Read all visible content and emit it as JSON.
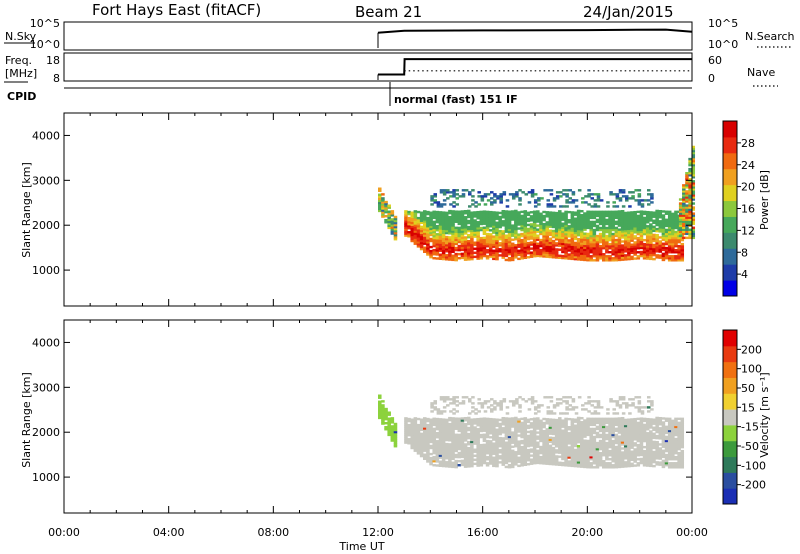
{
  "header": {
    "station": "Fort Hays East (fitACF)",
    "beam": "Beam 21",
    "date": "24/Jan/2015"
  },
  "top_panels": {
    "nsky": {
      "left_label": "N.Sky",
      "ticks_left": [
        "10^5",
        "10^0"
      ],
      "right_label": "N.Search",
      "ticks_right": [
        "10^5",
        "10^0"
      ]
    },
    "freq": {
      "left_label_1": "Freq.",
      "left_label_2": "[MHz]",
      "ticks_left": [
        "18",
        "8"
      ],
      "right_label": "Nave",
      "ticks_right": [
        "60",
        "0"
      ]
    },
    "cpid": {
      "label": "CPID",
      "text": "normal (fast) 151 IF"
    }
  },
  "axis": {
    "xlabel": "Time UT",
    "x_ticks": [
      "00:00",
      "04:00",
      "08:00",
      "12:00",
      "16:00",
      "20:00",
      "00:00"
    ],
    "ylabel": "Slant Range [km]",
    "y_ticks": [
      "4000",
      "3000",
      "2000",
      "1000"
    ]
  },
  "colorbars": {
    "power": {
      "label": "Power [dB]",
      "ticks": [
        "28",
        "24",
        "20",
        "16",
        "12",
        "8",
        "4"
      ],
      "colors": [
        "#0000e6",
        "#1e3ca8",
        "#2e6a9a",
        "#3c8a6e",
        "#46a85a",
        "#8cc83c",
        "#e0d020",
        "#f0a020",
        "#f06a10",
        "#e82a10",
        "#d80000"
      ]
    },
    "velocity": {
      "label": "Velocity [m s⁻¹]",
      "ticks": [
        "200",
        "100",
        "50",
        "15",
        "-15",
        "-50",
        "-100",
        "-200"
      ],
      "colors": [
        "#1a2eb4",
        "#2a4ea0",
        "#2e7a5a",
        "#3c9a3c",
        "#8cd23c",
        "#c8c8c0",
        "#f0d030",
        "#f0a020",
        "#f07010",
        "#e83a10",
        "#e00000"
      ]
    }
  },
  "chart_data": [
    {
      "type": "heatmap",
      "title": "",
      "quantity": "Power",
      "unit": "dB",
      "xlabel": "Time UT",
      "ylabel": "Slant Range [km]",
      "xlim": [
        "00:00",
        "24:00"
      ],
      "ylim": [
        200,
        4500
      ],
      "clim": [
        0,
        32
      ],
      "echo_regions": [
        {
          "t_start": "12:00",
          "t_end": "12:40",
          "range_km": [
            1700,
            2500
          ],
          "power_db": [
            8,
            24
          ]
        },
        {
          "t_start": "13:00",
          "t_end": "23:40",
          "range_km": [
            1200,
            2300
          ],
          "power_db": [
            12,
            30
          ]
        },
        {
          "t_start": "14:00",
          "t_end": "22:30",
          "range_km": [
            2400,
            2800
          ],
          "power_db": [
            4,
            12
          ]
        },
        {
          "t_start": "23:30",
          "t_end": "24:00",
          "range_km": [
            1700,
            3800
          ],
          "power_db": [
            8,
            28
          ]
        }
      ],
      "band_core_range_km": [
        {
          "t": "13:00",
          "r": 1950
        },
        {
          "t": "14:00",
          "r": 1450
        },
        {
          "t": "15:00",
          "r": 1400
        },
        {
          "t": "16:00",
          "r": 1450
        },
        {
          "t": "17:00",
          "r": 1400
        },
        {
          "t": "18:00",
          "r": 1500
        },
        {
          "t": "19:00",
          "r": 1450
        },
        {
          "t": "20:00",
          "r": 1400
        },
        {
          "t": "21:00",
          "r": 1400
        },
        {
          "t": "22:00",
          "r": 1450
        },
        {
          "t": "23:00",
          "r": 1400
        }
      ]
    },
    {
      "type": "heatmap",
      "title": "",
      "quantity": "Velocity",
      "unit": "m/s",
      "xlabel": "Time UT",
      "ylabel": "Slant Range [km]",
      "xlim": [
        "00:00",
        "24:00"
      ],
      "ylim": [
        200,
        4500
      ],
      "clim": [
        -250,
        250
      ],
      "echo_regions": [
        {
          "t_start": "12:00",
          "t_end": "12:40",
          "range_km": [
            1700,
            2500
          ],
          "velocity_ms": [
            15,
            50
          ]
        },
        {
          "t_start": "13:00",
          "t_end": "23:40",
          "range_km": [
            1200,
            2300
          ],
          "velocity_ms": [
            -15,
            15
          ]
        },
        {
          "t_start": "23:30",
          "t_end": "24:00",
          "range_km": [
            1700,
            3800
          ],
          "velocity_ms": [
            -15,
            15
          ]
        }
      ]
    },
    {
      "type": "line",
      "title": "",
      "name": "N.Sky",
      "x": [
        "12:00",
        "13:00",
        "16:00",
        "20:00",
        "23:00",
        "24:00"
      ],
      "y": [
        3000,
        8000,
        10000,
        12000,
        15000,
        5000
      ]
    },
    {
      "type": "line",
      "title": "",
      "name": "Freq. [MHz]",
      "x": [
        "12:00",
        "13:00",
        "13:01",
        "24:00"
      ],
      "y": [
        10.5,
        10.5,
        17.5,
        17.5
      ]
    },
    {
      "type": "line",
      "title": "",
      "name": "Nave",
      "x": [
        "13:00",
        "24:00"
      ],
      "y": [
        25,
        25
      ]
    }
  ]
}
